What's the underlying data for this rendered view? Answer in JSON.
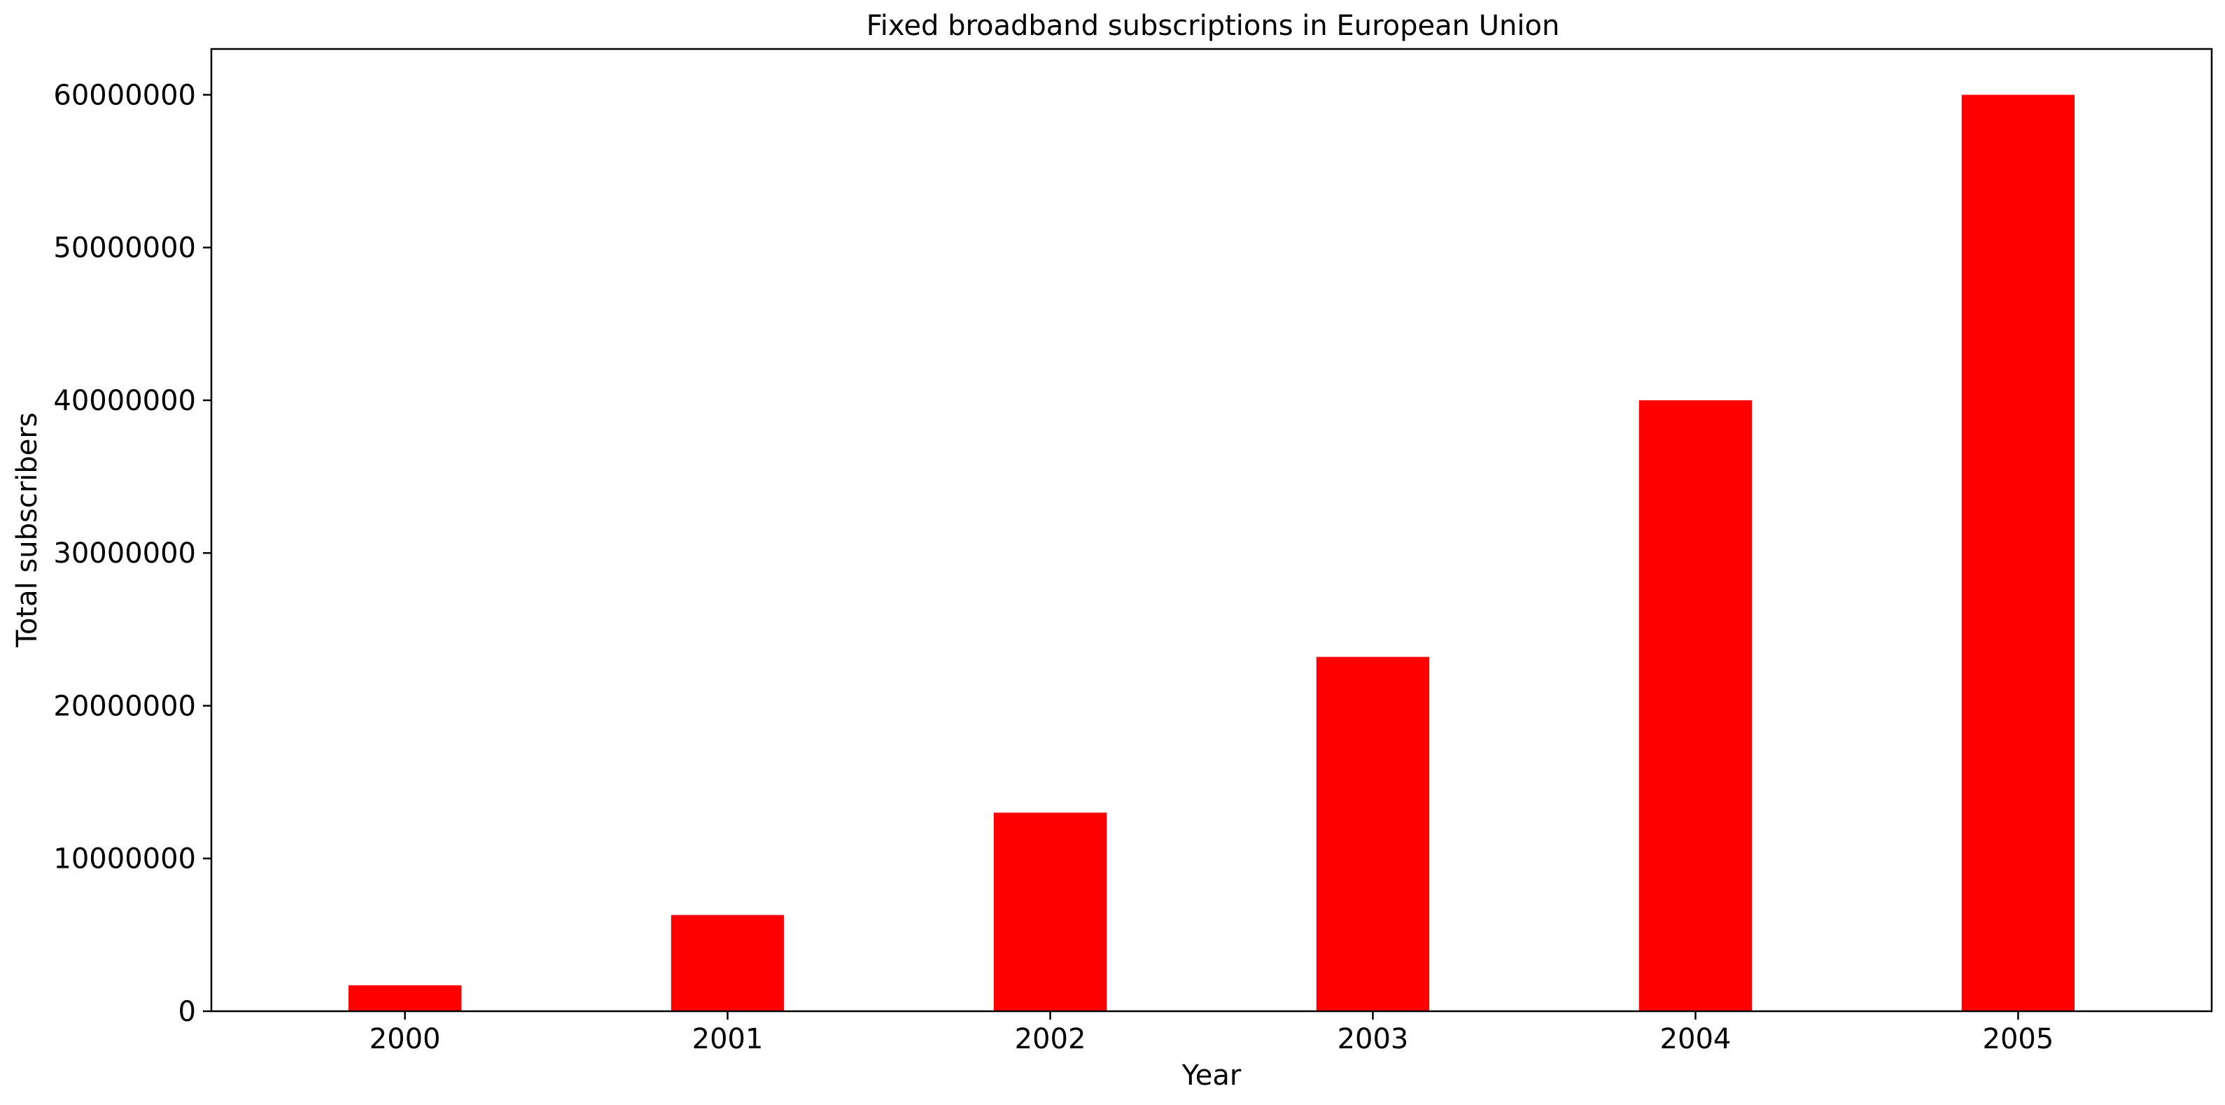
{
  "chart_data": {
    "type": "bar",
    "title": "Fixed broadband subscriptions in European Union",
    "xlabel": "Year",
    "ylabel": "Total subscribers",
    "categories": [
      "2000",
      "2001",
      "2002",
      "2003",
      "2004",
      "2005"
    ],
    "values": [
      1700000,
      6300000,
      13000000,
      23200000,
      40000000,
      60000000
    ],
    "ylim": [
      0,
      63000000
    ],
    "yticks": [
      0,
      10000000,
      20000000,
      30000000,
      40000000,
      50000000,
      60000000
    ],
    "ytick_labels": [
      "0",
      "10000000",
      "20000000",
      "30000000",
      "40000000",
      "50000000",
      "60000000"
    ],
    "bar_color": "#ff0000",
    "grid": false,
    "legend": false
  }
}
